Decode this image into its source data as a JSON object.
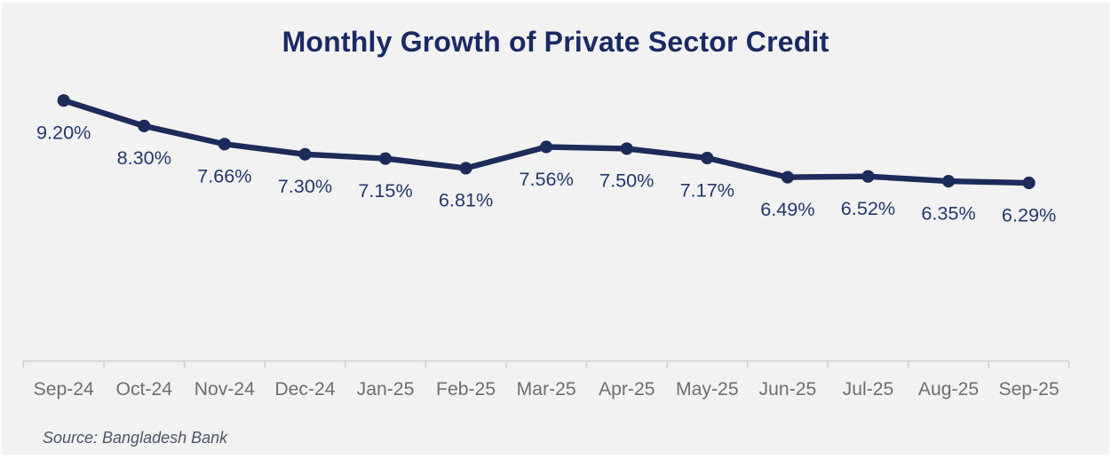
{
  "chart_data": {
    "type": "line",
    "title": "Monthly Growth of Private Sector Credit",
    "categories": [
      "Sep-24",
      "Oct-24",
      "Nov-24",
      "Dec-24",
      "Jan-25",
      "Feb-25",
      "Mar-25",
      "Apr-25",
      "May-25",
      "Jun-25",
      "Jul-25",
      "Aug-25",
      "Sep-25"
    ],
    "series": [
      {
        "name": "",
        "values": [
          9.2,
          8.3,
          7.66,
          7.3,
          7.15,
          6.81,
          7.56,
          7.5,
          7.17,
          6.49,
          6.52,
          6.35,
          6.29
        ]
      }
    ],
    "data_labels": [
      "9.20%",
      "8.30%",
      "7.66%",
      "7.30%",
      "7.15%",
      "6.81%",
      "7.56%",
      "7.50%",
      "7.17%",
      "6.49%",
      "6.52%",
      "6.35%",
      "6.29%"
    ],
    "xlabel": "",
    "ylabel": "",
    "ylim": [
      0,
      10
    ],
    "grid": false,
    "legend_position": "none",
    "marker": "circle",
    "data_label_position": "below"
  },
  "source_note": "Source: Bangladesh Bank",
  "colors": {
    "page_background": "#ffffff",
    "card_background": "#f2f2f2",
    "line": "#1c2b5a",
    "marker": "#1c2b5a",
    "title_text": "#192a63",
    "data_label_text": "#24386b",
    "axis_label_text": "#6e6e6e",
    "axis_line": "#d2d2d2",
    "source_text": "#4a5568"
  }
}
